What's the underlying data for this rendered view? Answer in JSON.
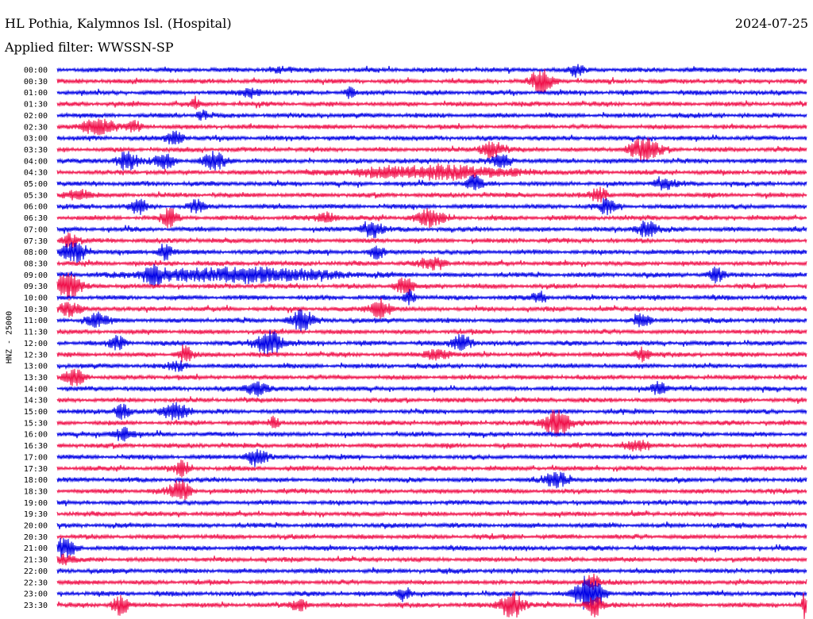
{
  "header": {
    "station": "HL Pothia, Kalymnos Isl. (Hospital)",
    "date": "2024-07-25",
    "filter": "Applied filter: WWSSN-SP"
  },
  "chart_data": {
    "type": "line",
    "title": "HL Pothia, Kalymnos Isl. (Hospital)",
    "ylabel": "HNZ - 25000",
    "traces": [
      "00:00",
      "00:30",
      "01:00",
      "01:30",
      "02:00",
      "02:30",
      "03:00",
      "03:30",
      "04:00",
      "04:30",
      "05:00",
      "05:30",
      "06:00",
      "06:30",
      "07:00",
      "07:30",
      "08:00",
      "08:30",
      "09:00",
      "09:30",
      "10:00",
      "10:30",
      "11:00",
      "11:30",
      "12:00",
      "12:30",
      "13:00",
      "13:30",
      "14:00",
      "14:30",
      "15:00",
      "15:30",
      "16:00",
      "16:30",
      "17:00",
      "17:30",
      "18:00",
      "18:30",
      "19:00",
      "19:30",
      "20:00",
      "20:30",
      "21:00",
      "21:30",
      "22:00",
      "22:30",
      "23:00",
      "23:30"
    ],
    "colors": [
      "#0000e6",
      "#f0104a"
    ],
    "x_range_minutes": [
      0,
      30
    ],
    "grid": false,
    "legend": "none",
    "bursts": [
      {
        "trace": 0,
        "minute": 20.8,
        "amp": 8,
        "width": 0.25
      },
      {
        "trace": 0,
        "minute": 8.9,
        "amp": 3,
        "width": 0.4
      },
      {
        "trace": 1,
        "minute": 19.4,
        "amp": 14,
        "width": 0.45
      },
      {
        "trace": 2,
        "minute": 7.8,
        "amp": 6,
        "width": 0.5
      },
      {
        "trace": 2,
        "minute": 11.7,
        "amp": 6,
        "width": 0.2
      },
      {
        "trace": 3,
        "minute": 5.5,
        "amp": 5,
        "width": 0.2
      },
      {
        "trace": 4,
        "minute": 5.8,
        "amp": 6,
        "width": 0.2
      },
      {
        "trace": 5,
        "minute": 1.6,
        "amp": 12,
        "width": 0.6
      },
      {
        "trace": 5,
        "minute": 3.1,
        "amp": 6,
        "width": 0.3
      },
      {
        "trace": 6,
        "minute": 4.7,
        "amp": 9,
        "width": 0.35
      },
      {
        "trace": 7,
        "minute": 17.4,
        "amp": 11,
        "width": 0.45
      },
      {
        "trace": 7,
        "minute": 23.5,
        "amp": 14,
        "width": 0.6
      },
      {
        "trace": 8,
        "minute": 2.8,
        "amp": 11,
        "width": 0.45
      },
      {
        "trace": 8,
        "minute": 4.3,
        "amp": 10,
        "width": 0.4
      },
      {
        "trace": 8,
        "minute": 6.3,
        "amp": 10,
        "width": 0.45
      },
      {
        "trace": 8,
        "minute": 17.8,
        "amp": 9,
        "width": 0.4
      },
      {
        "trace": 9,
        "minute": 15.0,
        "amp": 8,
        "width": 3.2
      },
      {
        "trace": 10,
        "minute": 16.7,
        "amp": 10,
        "width": 0.3
      },
      {
        "trace": 10,
        "minute": 24.3,
        "amp": 7,
        "width": 0.4
      },
      {
        "trace": 11,
        "minute": 0.8,
        "amp": 7,
        "width": 0.5
      },
      {
        "trace": 11,
        "minute": 21.7,
        "amp": 9,
        "width": 0.35
      },
      {
        "trace": 12,
        "minute": 3.3,
        "amp": 9,
        "width": 0.3
      },
      {
        "trace": 12,
        "minute": 5.6,
        "amp": 8,
        "width": 0.3
      },
      {
        "trace": 12,
        "minute": 22.0,
        "amp": 8,
        "width": 0.35
      },
      {
        "trace": 13,
        "minute": 4.5,
        "amp": 12,
        "width": 0.3
      },
      {
        "trace": 13,
        "minute": 10.8,
        "amp": 7,
        "width": 0.4
      },
      {
        "trace": 13,
        "minute": 14.9,
        "amp": 9,
        "width": 0.6
      },
      {
        "trace": 14,
        "minute": 12.6,
        "amp": 11,
        "width": 0.4
      },
      {
        "trace": 14,
        "minute": 23.6,
        "amp": 10,
        "width": 0.45
      },
      {
        "trace": 15,
        "minute": 0.5,
        "amp": 9,
        "width": 0.3
      },
      {
        "trace": 16,
        "minute": 0.7,
        "amp": 14,
        "width": 0.5
      },
      {
        "trace": 16,
        "minute": 4.3,
        "amp": 10,
        "width": 0.3
      },
      {
        "trace": 16,
        "minute": 12.8,
        "amp": 8,
        "width": 0.3
      },
      {
        "trace": 17,
        "minute": 15.0,
        "amp": 7,
        "width": 0.5
      },
      {
        "trace": 18,
        "minute": 3.9,
        "amp": 11,
        "width": 0.4
      },
      {
        "trace": 18,
        "minute": 7.5,
        "amp": 9,
        "width": 3.5
      },
      {
        "trace": 18,
        "minute": 26.4,
        "amp": 8,
        "width": 0.3
      },
      {
        "trace": 19,
        "minute": 0.4,
        "amp": 16,
        "width": 0.5
      },
      {
        "trace": 19,
        "minute": 13.9,
        "amp": 11,
        "width": 0.35
      },
      {
        "trace": 20,
        "minute": 14.1,
        "amp": 10,
        "width": 0.2
      },
      {
        "trace": 20,
        "minute": 19.3,
        "amp": 6,
        "width": 0.3
      },
      {
        "trace": 21,
        "minute": 0.5,
        "amp": 8,
        "width": 0.4
      },
      {
        "trace": 21,
        "minute": 12.9,
        "amp": 13,
        "width": 0.4
      },
      {
        "trace": 22,
        "minute": 1.6,
        "amp": 8,
        "width": 0.45
      },
      {
        "trace": 22,
        "minute": 9.8,
        "amp": 12,
        "width": 0.45
      },
      {
        "trace": 22,
        "minute": 23.4,
        "amp": 8,
        "width": 0.3
      },
      {
        "trace": 24,
        "minute": 2.4,
        "amp": 9,
        "width": 0.3
      },
      {
        "trace": 24,
        "minute": 8.5,
        "amp": 16,
        "width": 0.5
      },
      {
        "trace": 24,
        "minute": 16.2,
        "amp": 10,
        "width": 0.4
      },
      {
        "trace": 25,
        "minute": 5.1,
        "amp": 10,
        "width": 0.3
      },
      {
        "trace": 25,
        "minute": 15.2,
        "amp": 8,
        "width": 0.45
      },
      {
        "trace": 25,
        "minute": 23.4,
        "amp": 9,
        "width": 0.3
      },
      {
        "trace": 26,
        "minute": 4.8,
        "amp": 5,
        "width": 0.4
      },
      {
        "trace": 27,
        "minute": 0.7,
        "amp": 10,
        "width": 0.4
      },
      {
        "trace": 28,
        "minute": 8.0,
        "amp": 10,
        "width": 0.4
      },
      {
        "trace": 28,
        "minute": 24.1,
        "amp": 9,
        "width": 0.3
      },
      {
        "trace": 30,
        "minute": 2.6,
        "amp": 9,
        "width": 0.3
      },
      {
        "trace": 30,
        "minute": 4.8,
        "amp": 11,
        "width": 0.5
      },
      {
        "trace": 31,
        "minute": 8.7,
        "amp": 8,
        "width": 0.2
      },
      {
        "trace": 31,
        "minute": 20.0,
        "amp": 18,
        "width": 0.5
      },
      {
        "trace": 32,
        "minute": 2.6,
        "amp": 8,
        "width": 0.4
      },
      {
        "trace": 33,
        "minute": 23.2,
        "amp": 6,
        "width": 0.5
      },
      {
        "trace": 34,
        "minute": 8.0,
        "amp": 11,
        "width": 0.4
      },
      {
        "trace": 35,
        "minute": 5.0,
        "amp": 9,
        "width": 0.3
      },
      {
        "trace": 36,
        "minute": 20.0,
        "amp": 9,
        "width": 0.5
      },
      {
        "trace": 37,
        "minute": 4.9,
        "amp": 13,
        "width": 0.45
      },
      {
        "trace": 42,
        "minute": 0.3,
        "amp": 11,
        "width": 0.45
      },
      {
        "trace": 43,
        "minute": 0.3,
        "amp": 6,
        "width": 0.4
      },
      {
        "trace": 45,
        "minute": 21.4,
        "amp": 10,
        "width": 0.3
      },
      {
        "trace": 46,
        "minute": 21.3,
        "amp": 22,
        "width": 0.55
      },
      {
        "trace": 46,
        "minute": 13.9,
        "amp": 8,
        "width": 0.3
      },
      {
        "trace": 47,
        "minute": 2.5,
        "amp": 14,
        "width": 0.3
      },
      {
        "trace": 47,
        "minute": 9.7,
        "amp": 8,
        "width": 0.3
      },
      {
        "trace": 47,
        "minute": 18.2,
        "amp": 17,
        "width": 0.45
      },
      {
        "trace": 47,
        "minute": 21.5,
        "amp": 14,
        "width": 0.3
      },
      {
        "trace": 47,
        "minute": 29.9,
        "amp": 18,
        "width": 0.08
      }
    ]
  }
}
